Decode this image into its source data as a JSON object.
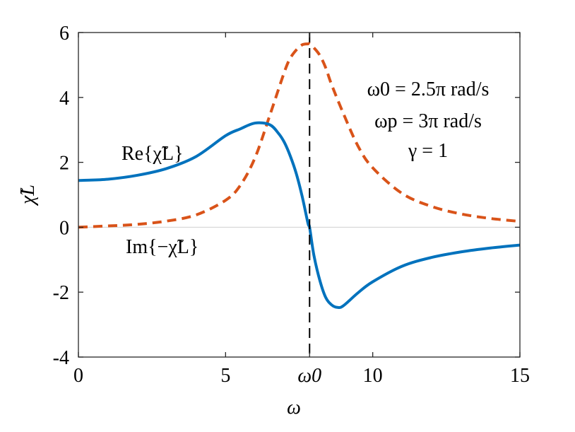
{
  "chart_data": {
    "type": "line",
    "xlim": [
      0,
      15
    ],
    "ylim": [
      -4,
      6
    ],
    "x_ticks": [
      {
        "value": 0,
        "label": "0"
      },
      {
        "value": 5,
        "label": "5"
      },
      {
        "value": 7.854,
        "label": "ω0"
      },
      {
        "value": 10,
        "label": "10"
      },
      {
        "value": 15,
        "label": "15"
      }
    ],
    "y_ticks": [
      {
        "value": -4,
        "label": "-4"
      },
      {
        "value": -2,
        "label": "-2"
      },
      {
        "value": 0,
        "label": "0"
      },
      {
        "value": 2,
        "label": "2"
      },
      {
        "value": 4,
        "label": "4"
      },
      {
        "value": 6,
        "label": "6"
      }
    ],
    "xlabel": "ω",
    "ylabel": "χ̃L",
    "grid": false,
    "zero_line": true,
    "resonance_marker": {
      "x": 7.854,
      "style": "dashed",
      "color": "#000000"
    },
    "series": [
      {
        "name": "Re{χ̃L}",
        "color": "#0072BD",
        "style": "solid",
        "x": [
          0,
          1,
          2,
          3,
          4,
          5,
          5.5,
          6,
          6.5,
          6.8,
          7.0,
          7.2,
          7.4,
          7.6,
          7.8,
          7.854,
          8.0,
          8.2,
          8.4,
          8.6,
          8.8,
          9.0,
          9.5,
          10,
          11,
          12,
          13,
          14,
          15
        ],
        "values": [
          1.44,
          1.48,
          1.6,
          1.81,
          2.18,
          2.82,
          3.03,
          3.21,
          3.16,
          2.89,
          2.61,
          2.19,
          1.66,
          0.96,
          0.12,
          0.0,
          -0.86,
          -1.63,
          -2.16,
          -2.39,
          -2.47,
          -2.42,
          -2.02,
          -1.68,
          -1.2,
          -0.93,
          -0.76,
          -0.64,
          -0.55
        ]
      },
      {
        "name": "Im{−χ̃L}",
        "color": "#D95319",
        "style": "dashed",
        "x": [
          0,
          1,
          2,
          3,
          4,
          5,
          5.5,
          6,
          6.5,
          7.0,
          7.2,
          7.4,
          7.6,
          7.8,
          7.854,
          8.0,
          8.2,
          8.4,
          8.6,
          9.0,
          9.5,
          10,
          11,
          12,
          13,
          14,
          15
        ],
        "values": [
          0.0,
          0.04,
          0.09,
          0.19,
          0.38,
          0.83,
          1.29,
          2.14,
          3.44,
          4.79,
          5.21,
          5.46,
          5.62,
          5.65,
          5.65,
          5.53,
          5.3,
          4.92,
          4.4,
          3.51,
          2.5,
          1.83,
          1.04,
          0.64,
          0.41,
          0.27,
          0.18
        ]
      }
    ],
    "annotations": {
      "re_label": "Re{χ̃L}",
      "im_label": "Im{−χ̃L}",
      "param_omega0": "ω0 = 2.5π rad/s",
      "param_omegap": "ωp = 3π rad/s",
      "param_gamma": "γ = 1"
    }
  }
}
